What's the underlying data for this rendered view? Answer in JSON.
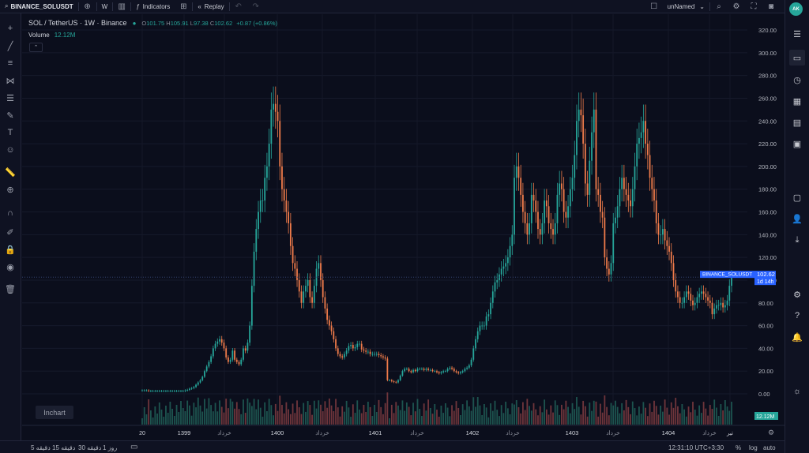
{
  "toolbar": {
    "symbol": "BINANCE_SOLUSDT",
    "interval": "W",
    "indicators_label": "Indicators",
    "replay_label": "Replay",
    "layout_name": "unNamed"
  },
  "legend": {
    "title": "SOL / TetherUS · 1W · Binance",
    "open_label": "O",
    "open": "101.75",
    "high_label": "H",
    "high": "105.91",
    "low_label": "L",
    "low": "97.38",
    "close_label": "C",
    "close": "102.62",
    "change": "+0.87 (+0.86%)",
    "volume_label": "Volume",
    "volume_value": "12.12M"
  },
  "price_tag": {
    "symbol": "BINANCE_SOLUSDT",
    "value": "102.62",
    "countdown": "1d 14h",
    "volume_tag": "12.12M"
  },
  "watermark": "Inchart",
  "avatar_initials": "AK",
  "bottom": {
    "ranges": [
      "5 دقیقه",
      "15 دقیقه",
      "30 دقیقه",
      "1 روز"
    ],
    "clock": "12:31:10 UTC+3:30",
    "percent": "%",
    "log": "log",
    "auto": "auto"
  },
  "chart_data": {
    "type": "candlestick",
    "y_ticks": [
      0,
      20,
      40,
      60,
      80,
      100,
      120,
      140,
      160,
      180,
      200,
      220,
      240,
      260,
      280,
      300,
      320
    ],
    "y_tick_labels": [
      "0.00",
      "20.00",
      "40.00",
      "60.00",
      "80.00",
      "100.00",
      "120.00",
      "140.00",
      "160.00",
      "180.00",
      "200.00",
      "220.00",
      "240.00",
      "260.00",
      "280.00",
      "300.00",
      "320.00"
    ],
    "x_labels": [
      "20",
      "1399",
      "خرداد",
      "1400",
      "خرداد",
      "1401",
      "خرداد",
      "1402",
      "خرداد",
      "1403",
      "خرداد",
      "1404",
      "خرداد",
      "تیر"
    ],
    "x_label_pos": [
      0,
      53,
      104,
      171,
      228,
      295,
      348,
      418,
      469,
      544,
      596,
      666,
      718,
      744
    ],
    "closes": [
      3,
      3,
      3,
      2.5,
      2.5,
      2.5,
      2.5,
      2.5,
      2.5,
      2.5,
      2.5,
      2.5,
      2.5,
      2.5,
      2.5,
      2.5,
      2.5,
      2.5,
      2.5,
      2.5,
      3,
      3.5,
      4.5,
      5,
      6,
      8,
      10,
      12,
      15,
      20,
      24,
      28,
      33,
      40,
      44,
      46,
      48,
      45,
      40,
      32,
      28,
      30,
      38,
      30,
      28,
      26,
      30,
      40,
      38,
      45,
      60,
      95,
      125,
      145,
      160,
      170,
      170,
      190,
      200,
      220,
      250,
      255,
      248,
      240,
      200,
      180,
      170,
      160,
      150,
      130,
      115,
      110,
      100,
      90,
      80,
      90,
      95,
      100,
      85,
      80,
      95,
      110,
      115,
      100,
      85,
      75,
      65,
      60,
      55,
      48,
      40,
      35,
      33,
      32,
      35,
      38,
      42,
      43,
      40,
      41,
      44,
      44,
      39,
      38,
      37,
      37,
      35,
      35,
      35,
      35,
      34,
      33,
      32,
      31,
      12,
      12,
      11,
      10.5,
      10,
      12,
      16,
      20,
      22,
      22,
      20,
      19,
      21,
      20,
      22,
      22,
      22,
      21,
      22,
      21,
      21,
      20,
      20,
      19,
      18,
      19,
      20,
      20,
      22,
      23,
      22,
      20,
      19,
      18,
      19,
      20,
      22,
      23,
      25,
      30,
      40,
      48,
      55,
      60,
      60,
      60,
      68,
      70,
      80,
      90,
      98,
      100,
      105,
      110,
      112,
      115,
      120,
      130,
      140,
      190,
      200,
      190,
      175,
      160,
      150,
      140,
      150,
      175,
      170,
      160,
      145,
      140,
      150,
      170,
      165,
      150,
      145,
      140,
      150,
      175,
      185,
      180,
      160,
      155,
      165,
      180,
      190,
      210,
      240,
      250,
      245,
      220,
      185,
      175,
      205,
      230,
      250,
      180,
      175,
      160,
      155,
      120,
      110,
      105,
      115,
      150,
      155,
      165,
      180,
      190,
      180,
      175,
      170,
      165,
      180,
      200,
      220,
      225,
      230,
      240,
      220,
      210,
      190,
      180,
      170,
      150,
      140,
      140,
      145,
      135,
      130,
      125,
      115,
      100,
      90,
      85,
      80,
      80,
      85,
      90,
      88,
      82,
      78,
      80,
      85,
      88,
      90,
      88,
      85,
      82,
      80,
      70,
      75,
      78,
      78,
      80,
      76,
      78,
      82,
      95,
      102.62
    ],
    "last_price": 102.62
  }
}
